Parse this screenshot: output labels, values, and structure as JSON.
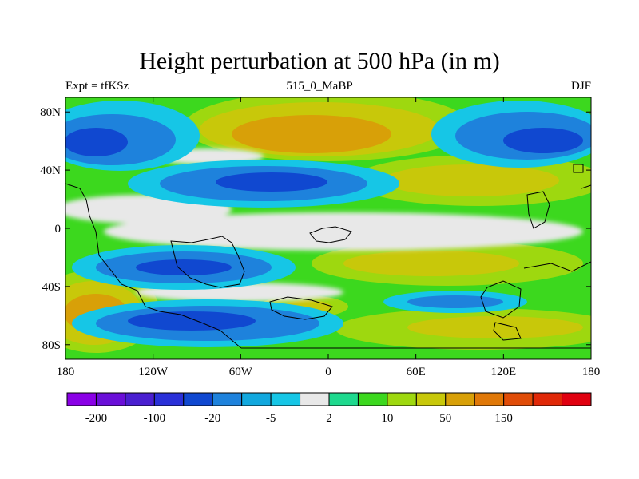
{
  "chart_data": {
    "type": "heatmap",
    "title": "Height perturbation at 500 hPa (in m)",
    "left_label": "Expt = tfKSz",
    "center_label": "515_0_MaBP",
    "right_label": "DJF",
    "xlim": [
      -180,
      180
    ],
    "ylim": [
      -90,
      90
    ],
    "x_ticks": [
      {
        "value": -180,
        "label": "180"
      },
      {
        "value": -120,
        "label": "120W"
      },
      {
        "value": -60,
        "label": "60W"
      },
      {
        "value": 0,
        "label": "0"
      },
      {
        "value": 60,
        "label": "60E"
      },
      {
        "value": 120,
        "label": "120E"
      },
      {
        "value": 180,
        "label": "180"
      }
    ],
    "y_ticks": [
      {
        "value": 80,
        "label": "80N"
      },
      {
        "value": 40,
        "label": "40N"
      },
      {
        "value": 0,
        "label": "0"
      },
      {
        "value": -40,
        "label": "40S"
      },
      {
        "value": -80,
        "label": "80S"
      }
    ],
    "colorbar": {
      "colors": [
        "#8a00e6",
        "#6a0fd8",
        "#4a1fd0",
        "#2a30d8",
        "#1048d0",
        "#1e82dc",
        "#12a8de",
        "#16c6e6",
        "#e8e8e8",
        "#1ed98e",
        "#3cd81e",
        "#9ed80f",
        "#c8c80a",
        "#d8a008",
        "#e07808",
        "#e04c08",
        "#e02808",
        "#e00010"
      ],
      "tick_labels": [
        "-200",
        "-100",
        "-20",
        "-5",
        "2",
        "10",
        "50",
        "150"
      ]
    }
  }
}
